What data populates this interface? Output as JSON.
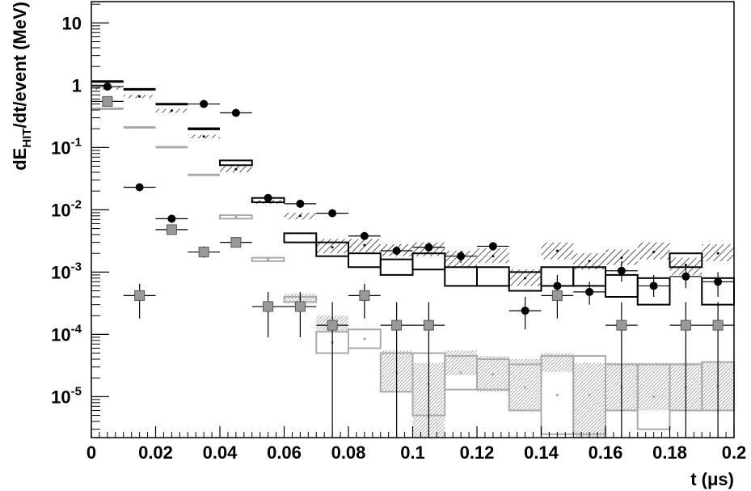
{
  "chart_data": {
    "type": "scatter",
    "title": "",
    "xlabel": "t (μs)",
    "ylabel": "dE_HIT/dt/event (MeV)",
    "ylabel_parts": {
      "main": "dE",
      "sub": "HIT",
      "rest": "/dt/event (MeV)"
    },
    "x_ticks": [
      "0",
      "0.02",
      "0.04",
      "0.06",
      "0.08",
      "0.1",
      "0.12",
      "0.14",
      "0.16",
      "0.18",
      "0.2"
    ],
    "x_tick_values": [
      0,
      0.02,
      0.04,
      0.06,
      0.08,
      0.1,
      0.12,
      0.14,
      0.16,
      0.18,
      0.2
    ],
    "y_ticks": [
      {
        "base": "10",
        "exp": "",
        "value": 10
      },
      {
        "base": "1",
        "exp": "",
        "value": 1
      },
      {
        "base": "10",
        "exp": "-1",
        "value": 0.1
      },
      {
        "base": "10",
        "exp": "-2",
        "value": 0.01
      },
      {
        "base": "10",
        "exp": "-3",
        "value": 0.001
      },
      {
        "base": "10",
        "exp": "-4",
        "value": 0.0001
      },
      {
        "base": "10",
        "exp": "-5",
        "value": 1e-05
      }
    ],
    "xlim": [
      0,
      0.2
    ],
    "ylim": [
      2.2e-06,
      22
    ],
    "y_scale": "log",
    "grid": false,
    "bin_width": 0.01,
    "bin_centers": [
      0.005,
      0.015,
      0.025,
      0.035,
      0.045,
      0.055,
      0.065,
      0.075,
      0.085,
      0.095,
      0.105,
      0.115,
      0.125,
      0.135,
      0.145,
      0.155,
      0.165,
      0.175,
      0.185,
      0.195
    ],
    "series": [
      {
        "marker": "black-boxes",
        "color": "#000000",
        "bins": [
          {
            "x": 0.005,
            "lo": 1.1,
            "hi": 1.2
          },
          {
            "x": 0.015,
            "lo": 0.85,
            "hi": 0.9
          },
          {
            "x": 0.025,
            "lo": 0.48,
            "hi": 0.52
          },
          {
            "x": 0.035,
            "lo": 0.19,
            "hi": 0.21
          },
          {
            "x": 0.045,
            "lo": 0.052,
            "hi": 0.062
          },
          {
            "x": 0.055,
            "lo": 0.0132,
            "hi": 0.0155
          },
          {
            "x": 0.065,
            "lo": 0.003,
            "hi": 0.0042
          },
          {
            "x": 0.075,
            "lo": 0.0018,
            "hi": 0.003
          },
          {
            "x": 0.085,
            "lo": 0.0012,
            "hi": 0.002
          },
          {
            "x": 0.095,
            "lo": 0.0009,
            "hi": 0.0016
          },
          {
            "x": 0.105,
            "lo": 0.0011,
            "hi": 0.002
          },
          {
            "x": 0.115,
            "lo": 0.0006,
            "hi": 0.0012
          },
          {
            "x": 0.125,
            "lo": 0.0006,
            "hi": 0.0012
          },
          {
            "x": 0.135,
            "lo": 0.0005,
            "hi": 0.001
          },
          {
            "x": 0.145,
            "lo": 0.0006,
            "hi": 0.0012
          },
          {
            "x": 0.155,
            "lo": 0.0006,
            "hi": 0.0012
          },
          {
            "x": 0.165,
            "lo": 0.0004,
            "hi": 0.0009
          },
          {
            "x": 0.175,
            "lo": 0.0003,
            "hi": 0.0008
          },
          {
            "x": 0.185,
            "lo": 0.0012,
            "hi": 0.002
          },
          {
            "x": 0.195,
            "lo": 0.0003,
            "hi": 0.0008
          }
        ]
      },
      {
        "marker": "hatched-black",
        "color": "#000000",
        "bins": [
          {
            "x": 0.005,
            "lo": 0.85,
            "hi": 0.95,
            "mid": 0.9
          },
          {
            "x": 0.015,
            "lo": 0.62,
            "hi": 0.7,
            "mid": 0.66
          },
          {
            "x": 0.025,
            "lo": 0.36,
            "hi": 0.42,
            "mid": 0.39
          },
          {
            "x": 0.035,
            "lo": 0.14,
            "hi": 0.16,
            "mid": 0.15
          },
          {
            "x": 0.045,
            "lo": 0.04,
            "hi": 0.05,
            "mid": 0.045
          },
          {
            "x": 0.055,
            "lo": 0.0125,
            "hi": 0.0145,
            "mid": 0.0135
          },
          {
            "x": 0.065,
            "lo": 0.007,
            "hi": 0.009,
            "mid": 0.008
          },
          {
            "x": 0.075,
            "lo": 0.002,
            "hi": 0.0034,
            "mid": 0.0025
          },
          {
            "x": 0.085,
            "lo": 0.0021,
            "hi": 0.0034,
            "mid": 0.0027
          },
          {
            "x": 0.095,
            "lo": 0.0018,
            "hi": 0.0028,
            "mid": 0.0022
          },
          {
            "x": 0.105,
            "lo": 0.0018,
            "hi": 0.003,
            "mid": 0.0024
          },
          {
            "x": 0.115,
            "lo": 0.0012,
            "hi": 0.0022,
            "mid": 0.0016
          },
          {
            "x": 0.125,
            "lo": 0.0014,
            "hi": 0.0024,
            "mid": 0.0018
          },
          {
            "x": 0.135,
            "lo": 0.0006,
            "hi": 0.0011,
            "mid": 0.0008
          },
          {
            "x": 0.145,
            "lo": 0.0016,
            "hi": 0.003,
            "mid": 0.0022
          },
          {
            "x": 0.155,
            "lo": 0.0011,
            "hi": 0.002,
            "mid": 0.0015
          },
          {
            "x": 0.165,
            "lo": 0.0013,
            "hi": 0.0023,
            "mid": 0.0017
          },
          {
            "x": 0.175,
            "lo": 0.0016,
            "hi": 0.003,
            "mid": 0.0021
          },
          {
            "x": 0.185,
            "lo": 0.0009,
            "hi": 0.0017,
            "mid": 0.0013
          },
          {
            "x": 0.195,
            "lo": 0.0015,
            "hi": 0.0028,
            "mid": 0.002
          }
        ]
      },
      {
        "marker": "black-circles",
        "color": "#000000",
        "points": [
          {
            "x": 0.005,
            "y": 0.95,
            "elo": 0.9,
            "ehi": 1.0
          },
          {
            "x": 0.015,
            "y": 0.023,
            "elo": 0.021,
            "ehi": 0.025
          },
          {
            "x": 0.025,
            "y": 0.0072,
            "elo": 0.0065,
            "ehi": 0.0079
          },
          {
            "x": 0.035,
            "y": 0.5,
            "elo": 0.48,
            "ehi": 0.52
          },
          {
            "x": 0.045,
            "y": 0.36,
            "elo": 0.34,
            "ehi": 0.38
          },
          {
            "x": 0.055,
            "y": 0.0155,
            "elo": 0.0148,
            "ehi": 0.0162
          },
          {
            "x": 0.065,
            "y": 0.0125,
            "elo": 0.0118,
            "ehi": 0.0132
          },
          {
            "x": 0.075,
            "y": 0.0088,
            "elo": 0.0082,
            "ehi": 0.0094
          },
          {
            "x": 0.085,
            "y": 0.0038,
            "elo": 0.0033,
            "ehi": 0.0044
          },
          {
            "x": 0.095,
            "y": 0.0022,
            "elo": 0.0019,
            "ehi": 0.0026
          },
          {
            "x": 0.105,
            "y": 0.0025,
            "elo": 0.0021,
            "ehi": 0.003
          },
          {
            "x": 0.115,
            "y": 0.0018,
            "elo": 0.0014,
            "ehi": 0.0022
          },
          {
            "x": 0.125,
            "y": 0.0026,
            "elo": 0.0022,
            "ehi": 0.003
          },
          {
            "x": 0.135,
            "y": 0.00024,
            "elo": 0.00012,
            "ehi": 0.0004
          },
          {
            "x": 0.145,
            "y": 0.0006,
            "elo": 0.0004,
            "ehi": 0.0009
          },
          {
            "x": 0.155,
            "y": 0.00048,
            "elo": 0.0003,
            "ehi": 0.0007
          },
          {
            "x": 0.165,
            "y": 0.00105,
            "elo": 0.0007,
            "ehi": 0.0015
          },
          {
            "x": 0.175,
            "y": 0.0006,
            "elo": 0.0004,
            "ehi": 0.0009
          },
          {
            "x": 0.185,
            "y": 0.00085,
            "elo": 0.00055,
            "ehi": 0.0013
          },
          {
            "x": 0.195,
            "y": 0.0007,
            "elo": 0.0004,
            "ehi": 0.001
          }
        ]
      },
      {
        "marker": "gray-boxes",
        "color": "#999999",
        "bins": [
          {
            "x": 0.005,
            "lo": 0.4,
            "hi": 0.44
          },
          {
            "x": 0.015,
            "lo": 0.21,
            "hi": 0.22
          },
          {
            "x": 0.025,
            "lo": 0.102,
            "hi": 0.106
          },
          {
            "x": 0.035,
            "lo": 0.036,
            "hi": 0.038
          },
          {
            "x": 0.045,
            "lo": 0.0072,
            "hi": 0.0082
          },
          {
            "x": 0.055,
            "lo": 0.0015,
            "hi": 0.0017
          },
          {
            "x": 0.065,
            "lo": 0.00033,
            "hi": 0.0004
          },
          {
            "x": 0.075,
            "lo": 5e-05,
            "hi": 0.00011
          },
          {
            "x": 0.085,
            "lo": 6e-05,
            "hi": 0.00012
          },
          {
            "x": 0.095,
            "lo": 1.2e-05,
            "hi": 5e-05
          },
          {
            "x": 0.105,
            "lo": 5e-06,
            "hi": 5e-05
          },
          {
            "x": 0.115,
            "lo": 1.3e-05,
            "hi": 4.5e-05
          },
          {
            "x": 0.125,
            "lo": 1.3e-05,
            "hi": 4e-05
          },
          {
            "x": 0.135,
            "lo": 6e-06,
            "hi": 3.3e-05
          },
          {
            "x": 0.145,
            "lo": 2.5e-06,
            "hi": 4.5e-05
          },
          {
            "x": 0.155,
            "lo": 2.5e-06,
            "hi": 4.5e-05
          },
          {
            "x": 0.165,
            "lo": 6e-06,
            "hi": 3.3e-05
          },
          {
            "x": 0.175,
            "lo": 3e-06,
            "hi": 3.3e-05
          },
          {
            "x": 0.185,
            "lo": 6e-06,
            "hi": 3.3e-05
          },
          {
            "x": 0.195,
            "lo": 6e-06,
            "hi": 3.6e-05
          }
        ]
      },
      {
        "marker": "gray-hatched",
        "color": "#777777",
        "bins": [
          {
            "x": 0.065,
            "lo": 0.00033,
            "hi": 0.00045
          },
          {
            "x": 0.075,
            "lo": 0.00011,
            "hi": 0.0002
          },
          {
            "x": 0.095,
            "lo": 1.2e-05,
            "hi": 5.5e-05
          },
          {
            "x": 0.105,
            "lo": 2.2e-06,
            "hi": 3.5e-05
          },
          {
            "x": 0.115,
            "lo": 2.2e-05,
            "hi": 5.5e-05
          },
          {
            "x": 0.125,
            "lo": 1.2e-05,
            "hi": 4.5e-05
          },
          {
            "x": 0.135,
            "lo": 6e-06,
            "hi": 4e-05
          },
          {
            "x": 0.145,
            "lo": 2.5e-05,
            "hi": 5e-05
          },
          {
            "x": 0.155,
            "lo": 2.2e-06,
            "hi": 3.5e-05
          },
          {
            "x": 0.165,
            "lo": 6e-06,
            "hi": 3.5e-05
          },
          {
            "x": 0.175,
            "lo": 6e-06,
            "hi": 3.5e-05
          },
          {
            "x": 0.185,
            "lo": 6e-06,
            "hi": 3.5e-05
          },
          {
            "x": 0.195,
            "lo": 6e-06,
            "hi": 3.5e-05
          }
        ]
      },
      {
        "marker": "gray-squares",
        "color": "#aaaaaa",
        "points": [
          {
            "x": 0.005,
            "y": 0.55,
            "elo": 0.52,
            "ehi": 0.58
          },
          {
            "x": 0.015,
            "y": 0.00042,
            "elo": 0.00018,
            "ehi": 0.00065
          },
          {
            "x": 0.025,
            "y": 0.0048,
            "elo": 0.0042,
            "ehi": 0.0055
          },
          {
            "x": 0.035,
            "y": 0.0021,
            "elo": 0.0017,
            "ehi": 0.0026
          },
          {
            "x": 0.045,
            "y": 0.003,
            "elo": 0.0025,
            "ehi": 0.0036
          },
          {
            "x": 0.055,
            "y": 0.00028,
            "elo": 9e-05,
            "ehi": 0.00048
          },
          {
            "x": 0.065,
            "y": 0.00028,
            "elo": 9e-05,
            "ehi": 0.00048
          },
          {
            "x": 0.075,
            "y": 0.00014,
            "elo": 2.2e-06,
            "ehi": 0.00033
          },
          {
            "x": 0.085,
            "y": 0.00042,
            "elo": 0.00018,
            "ehi": 0.00065
          },
          {
            "x": 0.095,
            "y": 0.00014,
            "elo": 2.2e-06,
            "ehi": 0.00033
          },
          {
            "x": 0.105,
            "y": 0.00014,
            "elo": 2.2e-06,
            "ehi": 0.00033
          },
          {
            "x": 0.145,
            "y": 0.00042,
            "elo": 0.00018,
            "ehi": 0.00065
          },
          {
            "x": 0.165,
            "y": 0.00014,
            "elo": 2.2e-06,
            "ehi": 0.00033
          },
          {
            "x": 0.185,
            "y": 0.00014,
            "elo": 2.2e-06,
            "ehi": 0.00033
          },
          {
            "x": 0.195,
            "y": 0.00014,
            "elo": 2.2e-06,
            "ehi": 0.00033
          }
        ]
      }
    ]
  }
}
